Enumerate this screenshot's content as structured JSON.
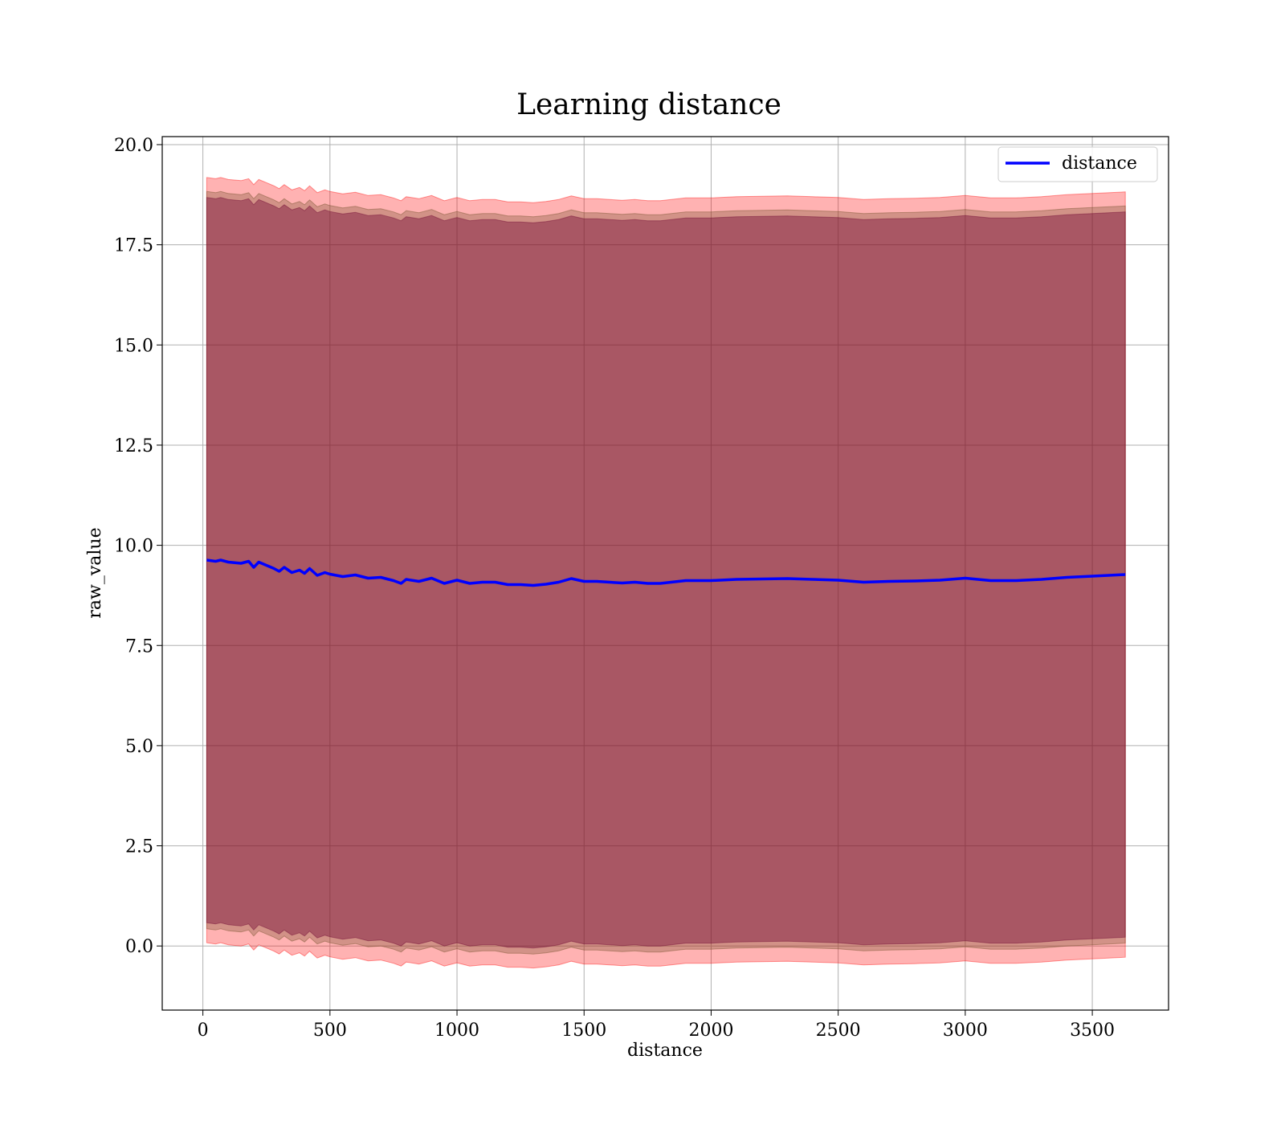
{
  "chart_data": {
    "type": "line",
    "title": "Learning distance",
    "xlabel": "distance",
    "ylabel": "raw_value",
    "xlim": [
      -160,
      3800
    ],
    "ylim": [
      -1.6,
      20.2
    ],
    "xticks": [
      0,
      500,
      1000,
      1500,
      2000,
      2500,
      3000,
      3500
    ],
    "xtick_labels": [
      "0",
      "500",
      "1000",
      "1500",
      "2000",
      "2500",
      "3000",
      "3500"
    ],
    "yticks": [
      0.0,
      2.5,
      5.0,
      7.5,
      10.0,
      12.5,
      15.0,
      17.5,
      20.0
    ],
    "ytick_labels": [
      "0.0",
      "2.5",
      "5.0",
      "7.5",
      "10.0",
      "12.5",
      "15.0",
      "17.5",
      "20.0"
    ],
    "grid": true,
    "legend_placement": "top-right",
    "series": [
      {
        "name": "distance",
        "color": "#0000ff",
        "x": [
          15,
          50,
          70,
          100,
          150,
          180,
          200,
          220,
          250,
          280,
          300,
          320,
          350,
          380,
          400,
          420,
          450,
          480,
          500,
          550,
          600,
          650,
          700,
          750,
          780,
          800,
          850,
          900,
          950,
          1000,
          1050,
          1100,
          1150,
          1200,
          1250,
          1300,
          1350,
          1400,
          1450,
          1500,
          1550,
          1600,
          1650,
          1700,
          1750,
          1800,
          1900,
          2000,
          2100,
          2200,
          2300,
          2400,
          2500,
          2600,
          2700,
          2800,
          2900,
          3000,
          3100,
          3200,
          3300,
          3400,
          3500,
          3630
        ],
        "values": [
          9.63,
          9.6,
          9.63,
          9.58,
          9.55,
          9.6,
          9.45,
          9.58,
          9.5,
          9.42,
          9.35,
          9.45,
          9.32,
          9.38,
          9.3,
          9.42,
          9.25,
          9.32,
          9.28,
          9.22,
          9.26,
          9.18,
          9.2,
          9.12,
          9.05,
          9.15,
          9.1,
          9.18,
          9.05,
          9.13,
          9.05,
          9.08,
          9.08,
          9.02,
          9.02,
          9.0,
          9.03,
          9.08,
          9.17,
          9.1,
          9.1,
          9.08,
          9.06,
          9.08,
          9.05,
          9.05,
          9.12,
          9.12,
          9.15,
          9.16,
          9.17,
          9.15,
          9.13,
          9.08,
          9.1,
          9.11,
          9.13,
          9.18,
          9.12,
          9.12,
          9.15,
          9.2,
          9.23,
          9.27
        ]
      }
    ],
    "bands": [
      {
        "color": "#ff0000",
        "opacity": 0.3,
        "offset": 9.55
      },
      {
        "color": "#6b4a23",
        "opacity": 0.3,
        "offset": 9.2
      },
      {
        "color": "#6b0030",
        "opacity": 0.4,
        "offset": 9.05
      }
    ]
  }
}
